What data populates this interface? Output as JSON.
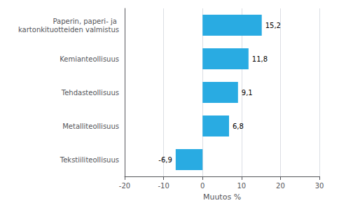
{
  "chart_data": {
    "type": "bar",
    "orientation": "horizontal",
    "categories": [
      "Tekstiiliteollisuus",
      "Metalliteollisuus",
      "Tehdasteollisuus",
      "Kemianteollisuus",
      "Paperin, paperi- ja kartonkituotteiden valmistus"
    ],
    "values": [
      -6.9,
      6.8,
      9.1,
      11.8,
      15.2
    ],
    "value_labels": [
      "-6,9",
      "6,8",
      "9,1",
      "11,8",
      "15,2"
    ],
    "data_labels": true,
    "color": "#29abe2",
    "xlabel": "Muutos %",
    "xlim": [
      -20,
      30
    ],
    "xticks": [
      -20,
      -10,
      0,
      10,
      20,
      30
    ],
    "grid": true
  }
}
